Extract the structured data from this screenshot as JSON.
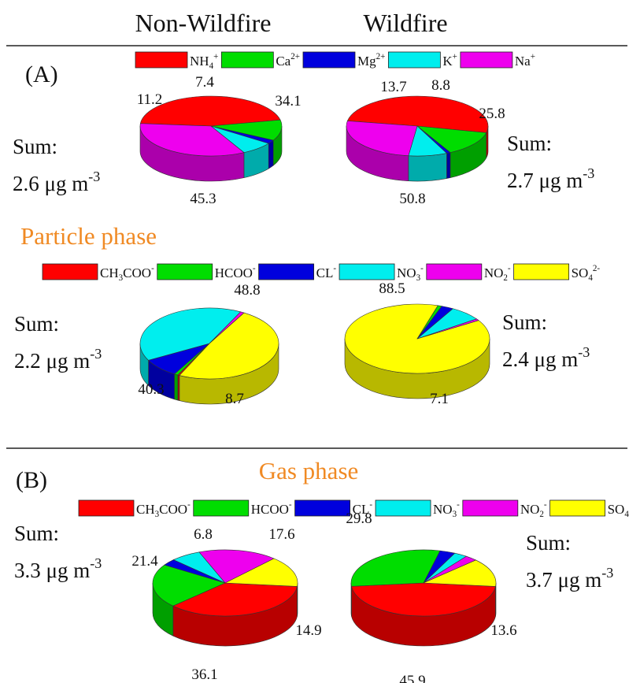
{
  "header": {
    "left": "Non-Wildfire",
    "right": "Wildfire"
  },
  "panels": {
    "a": "(A)",
    "b": "(B)"
  },
  "phase_titles": {
    "particle": "Particle phase",
    "gas": "Gas phase"
  },
  "sum_texts": {
    "a_left": [
      "Sum:",
      "2.6 μg m",
      "-3"
    ],
    "a_right": [
      "Sum:",
      "2.7 μg m",
      "-3"
    ],
    "p_left": [
      "Sum:",
      "2.2 μg m",
      "-3"
    ],
    "p_right": [
      "Sum:",
      "2.4 μg m",
      "-3"
    ],
    "b_left": [
      "Sum:",
      "3.3 μg m",
      "-3"
    ],
    "b_right": [
      "Sum:",
      "3.7 μg m",
      "-3"
    ]
  },
  "legends": {
    "cations": [
      {
        "base": "NH",
        "sub": "4",
        "sup": "+",
        "color": "#ff0000"
      },
      {
        "base": "Ca",
        "sub": "",
        "sup": "2+",
        "color": "#00dd00"
      },
      {
        "base": "Mg",
        "sub": "",
        "sup": "2+",
        "color": "#0000dd"
      },
      {
        "base": "K",
        "sub": "",
        "sup": "+",
        "color": "#00eeee"
      },
      {
        "base": "Na",
        "sub": "",
        "sup": "+",
        "color": "#ee00ee"
      }
    ],
    "anions": [
      {
        "base": "CH",
        "sub": "3",
        "rest": "COO",
        "sup": "-",
        "color": "#ff0000"
      },
      {
        "base": "HCOO",
        "sub": "",
        "sup": "-",
        "color": "#00dd00"
      },
      {
        "base": "CL",
        "sub": "",
        "sup": "-",
        "color": "#0000dd"
      },
      {
        "base": "NO",
        "sub": "3",
        "sup": "-",
        "color": "#00eeee"
      },
      {
        "base": "NO",
        "sub": "2",
        "sup": "-",
        "color": "#ee00ee"
      },
      {
        "base": "SO",
        "sub": "4",
        "sup": "2-",
        "color": "#ffff00"
      }
    ]
  },
  "chart_data": [
    {
      "type": "pie",
      "panel": "A",
      "group": "Non-Wildfire",
      "sum": "2.6 μg m-3",
      "slices": [
        {
          "label": "NH4+",
          "value": 45.3,
          "color": "#ff0000"
        },
        {
          "label": "Ca2+",
          "value": 11.2,
          "color": "#00dd00"
        },
        {
          "label": "Mg2+",
          "value": 2.0,
          "color": "#0000dd"
        },
        {
          "label": "K+",
          "value": 7.4,
          "color": "#00eeee"
        },
        {
          "label": "Na+",
          "value": 34.1,
          "color": "#ee00ee"
        }
      ],
      "shown_labels": [
        "45.3",
        "11.2",
        "",
        "7.4",
        "34.1"
      ]
    },
    {
      "type": "pie",
      "panel": "A",
      "group": "Wildfire",
      "sum": "2.7 μg m-3",
      "slices": [
        {
          "label": "NH4+",
          "value": 50.8,
          "color": "#ff0000"
        },
        {
          "label": "Ca2+",
          "value": 13.7,
          "color": "#00dd00"
        },
        {
          "label": "Mg2+",
          "value": 0.9,
          "color": "#0000dd"
        },
        {
          "label": "K+",
          "value": 8.8,
          "color": "#00eeee"
        },
        {
          "label": "Na+",
          "value": 25.8,
          "color": "#ee00ee"
        }
      ],
      "shown_labels": [
        "50.8",
        "13.7",
        "",
        "8.8",
        "25.8"
      ]
    },
    {
      "type": "pie",
      "panel": "A",
      "group": "Non-Wildfire",
      "phase": "Particle phase",
      "sum": "2.2 μg m-3",
      "slices": [
        {
          "label": "SO42-",
          "value": 48.8,
          "color": "#ffff00"
        },
        {
          "label": "CH3COO-",
          "value": 0.4,
          "color": "#ff0000"
        },
        {
          "label": "HCOO-",
          "value": 0.9,
          "color": "#00dd00"
        },
        {
          "label": "CL-",
          "value": 8.7,
          "color": "#0000dd"
        },
        {
          "label": "NO3-",
          "value": 40.3,
          "color": "#00eeee"
        },
        {
          "label": "NO2-",
          "value": 0.9,
          "color": "#ee00ee"
        }
      ],
      "shown_labels": [
        "48.8",
        "",
        "",
        "8.7",
        "40.3",
        ""
      ]
    },
    {
      "type": "pie",
      "panel": "A",
      "group": "Wildfire",
      "phase": "Particle phase",
      "sum": "2.4 μg m-3",
      "slices": [
        {
          "label": "SO42-",
          "value": 88.5,
          "color": "#ffff00"
        },
        {
          "label": "HCOO-",
          "value": 0.9,
          "color": "#00dd00"
        },
        {
          "label": "CL-",
          "value": 2.7,
          "color": "#0000dd"
        },
        {
          "label": "NO3-",
          "value": 7.1,
          "color": "#00eeee"
        },
        {
          "label": "NO2-",
          "value": 0.8,
          "color": "#ee00ee"
        }
      ],
      "shown_labels": [
        "88.5",
        "",
        "",
        "7.1",
        ""
      ]
    },
    {
      "type": "pie",
      "panel": "B",
      "group": "Non-Wildfire",
      "phase": "Gas phase",
      "sum": "3.3 μg m-3",
      "slices": [
        {
          "label": "CH3COO-",
          "value": 36.1,
          "color": "#ff0000"
        },
        {
          "label": "HCOO-",
          "value": 21.4,
          "color": "#00dd00"
        },
        {
          "label": "CL-",
          "value": 3.2,
          "color": "#0000dd"
        },
        {
          "label": "NO3-",
          "value": 6.8,
          "color": "#00eeee"
        },
        {
          "label": "NO2-",
          "value": 17.6,
          "color": "#ee00ee"
        },
        {
          "label": "SO42-",
          "value": 14.9,
          "color": "#ffff00"
        }
      ],
      "shown_labels": [
        "36.1",
        "21.4",
        "",
        "6.8",
        "17.6",
        "14.9"
      ]
    },
    {
      "type": "pie",
      "panel": "B",
      "group": "Wildfire",
      "phase": "Gas phase",
      "sum": "3.7 μg m-3",
      "slices": [
        {
          "label": "CH3COO-",
          "value": 45.9,
          "color": "#ff0000"
        },
        {
          "label": "HCOO-",
          "value": 29.8,
          "color": "#00dd00"
        },
        {
          "label": "CL-",
          "value": 3.4,
          "color": "#0000dd"
        },
        {
          "label": "NO3-",
          "value": 2.9,
          "color": "#00eeee"
        },
        {
          "label": "NO2-",
          "value": 2.7,
          "color": "#ee00ee"
        },
        {
          "label": "SO42-",
          "value": 13.6,
          "color": "#ffff00"
        }
      ],
      "shown_labels": [
        "45.9",
        "29.8",
        "",
        "",
        "",
        "13.6"
      ]
    }
  ]
}
